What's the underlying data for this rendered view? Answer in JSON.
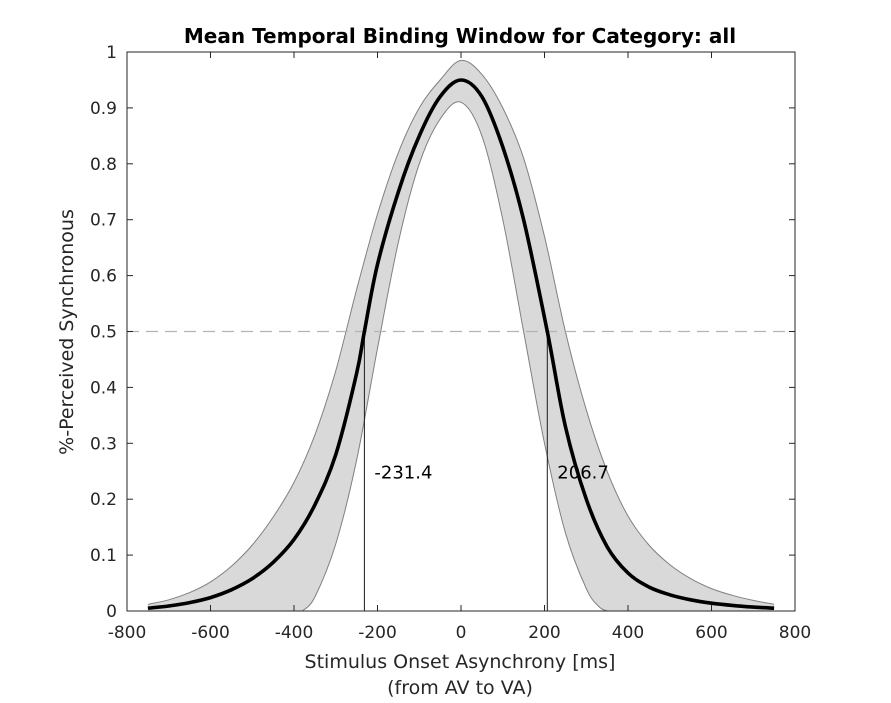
{
  "chart_data": {
    "type": "line",
    "title": "Mean Temporal Binding Window for Category: all",
    "xlabel": "Stimulus Onset Asynchrony [ms]",
    "xlabel_sub": "(from AV to VA)",
    "ylabel": "%-Perceived Synchronous",
    "xlim": [
      -800,
      800
    ],
    "ylim": [
      0,
      1
    ],
    "xticks": [
      -800,
      -600,
      -400,
      -200,
      0,
      200,
      400,
      600,
      800
    ],
    "xtick_labels": [
      "-800",
      "-600",
      "-400",
      "-200",
      "0",
      "200",
      "400",
      "600",
      "800"
    ],
    "yticks": [
      0,
      0.1,
      0.2,
      0.3,
      0.4,
      0.5,
      0.6,
      0.7,
      0.8,
      0.9,
      1
    ],
    "ytick_labels": [
      "0",
      "0.1",
      "0.2",
      "0.3",
      "0.4",
      "0.5",
      "0.6",
      "0.7",
      "0.8",
      "0.9",
      "1"
    ],
    "grid": false,
    "series": [
      {
        "role": "mean",
        "x": [
          -750,
          -700,
          -650,
          -600,
          -550,
          -500,
          -450,
          -400,
          -350,
          -300,
          -250,
          -231.4,
          -200,
          -150,
          -100,
          -50,
          0,
          50,
          100,
          150,
          206.7,
          250,
          300,
          350,
          400,
          450,
          500,
          550,
          600,
          650,
          700,
          750
        ],
        "y": [
          0.005,
          0.009,
          0.015,
          0.024,
          0.038,
          0.058,
          0.087,
          0.128,
          0.19,
          0.28,
          0.425,
          0.5,
          0.62,
          0.75,
          0.85,
          0.92,
          0.95,
          0.92,
          0.83,
          0.7,
          0.5,
          0.33,
          0.2,
          0.115,
          0.068,
          0.043,
          0.029,
          0.02,
          0.014,
          0.01,
          0.007,
          0.005
        ],
        "color": "#000000"
      },
      {
        "role": "upper-bound",
        "x": [
          -750,
          -700,
          -650,
          -600,
          -550,
          -500,
          -450,
          -400,
          -350,
          -300,
          -250,
          -200,
          -150,
          -100,
          -50,
          0,
          50,
          100,
          150,
          200,
          250,
          300,
          350,
          400,
          450,
          500,
          550,
          600,
          650,
          700,
          750
        ],
        "y": [
          0.012,
          0.02,
          0.033,
          0.052,
          0.08,
          0.118,
          0.168,
          0.23,
          0.315,
          0.43,
          0.575,
          0.71,
          0.82,
          0.9,
          0.95,
          0.985,
          0.96,
          0.9,
          0.81,
          0.67,
          0.5,
          0.36,
          0.25,
          0.17,
          0.118,
          0.083,
          0.058,
          0.04,
          0.028,
          0.019,
          0.012
        ],
        "color": "#808080"
      },
      {
        "role": "lower-bound",
        "x": [
          -750,
          -700,
          -650,
          -600,
          -550,
          -500,
          -450,
          -400,
          -380,
          -350,
          -300,
          -250,
          -200,
          -150,
          -100,
          -50,
          0,
          50,
          100,
          150,
          200,
          250,
          300,
          330,
          350
        ],
        "y": [
          null,
          null,
          null,
          null,
          null,
          null,
          null,
          null,
          0,
          0.025,
          0.12,
          0.27,
          0.47,
          0.66,
          0.8,
          0.88,
          0.91,
          0.85,
          0.7,
          0.5,
          0.3,
          0.14,
          0.04,
          0.008,
          0
        ],
        "color": "#808080"
      }
    ],
    "band_fill": "#d9d9d9",
    "threshold": {
      "y": 0.5,
      "color": "#b3b3b3"
    },
    "annotations": [
      {
        "x": -231.4,
        "label": "-231.4"
      },
      {
        "x": 206.7,
        "label": "206.7"
      }
    ]
  }
}
